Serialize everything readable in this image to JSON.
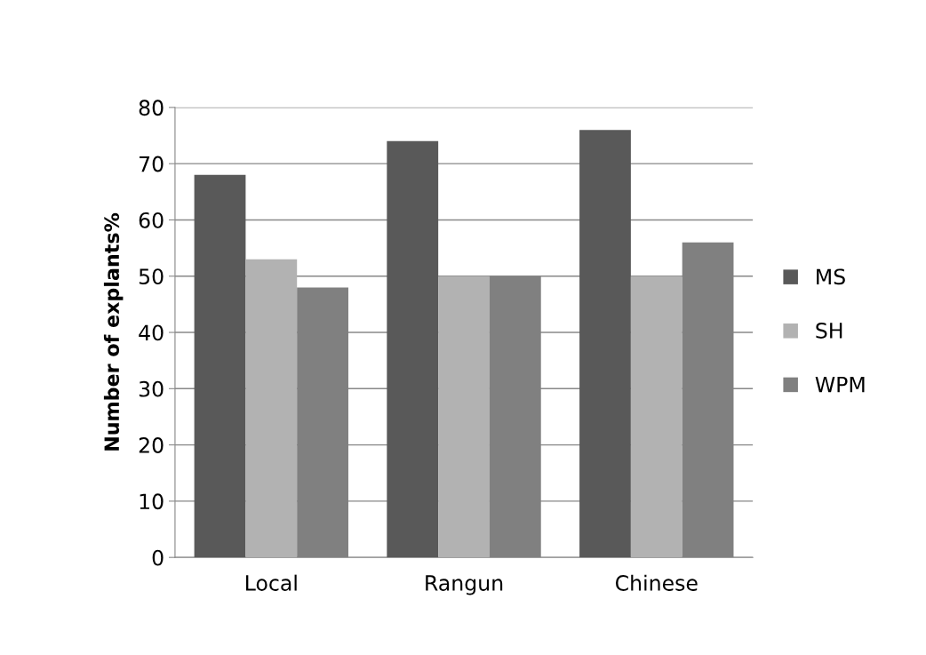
{
  "chart_data": {
    "type": "bar",
    "ylabel": "Number of explants%",
    "categories": [
      "Local",
      "Rangun",
      "Chinese"
    ],
    "series": [
      {
        "name": "MS",
        "color": "#595959",
        "values": [
          68,
          74,
          76
        ]
      },
      {
        "name": "SH",
        "color": "#b2b2b2",
        "values": [
          53,
          50,
          50
        ]
      },
      {
        "name": "WPM",
        "color": "#808080",
        "values": [
          48,
          50,
          56
        ]
      }
    ],
    "ylim": [
      0,
      80
    ],
    "yticks": [
      0,
      10,
      20,
      30,
      40,
      50,
      60,
      70,
      80
    ],
    "grid": "y",
    "legend": "right"
  }
}
